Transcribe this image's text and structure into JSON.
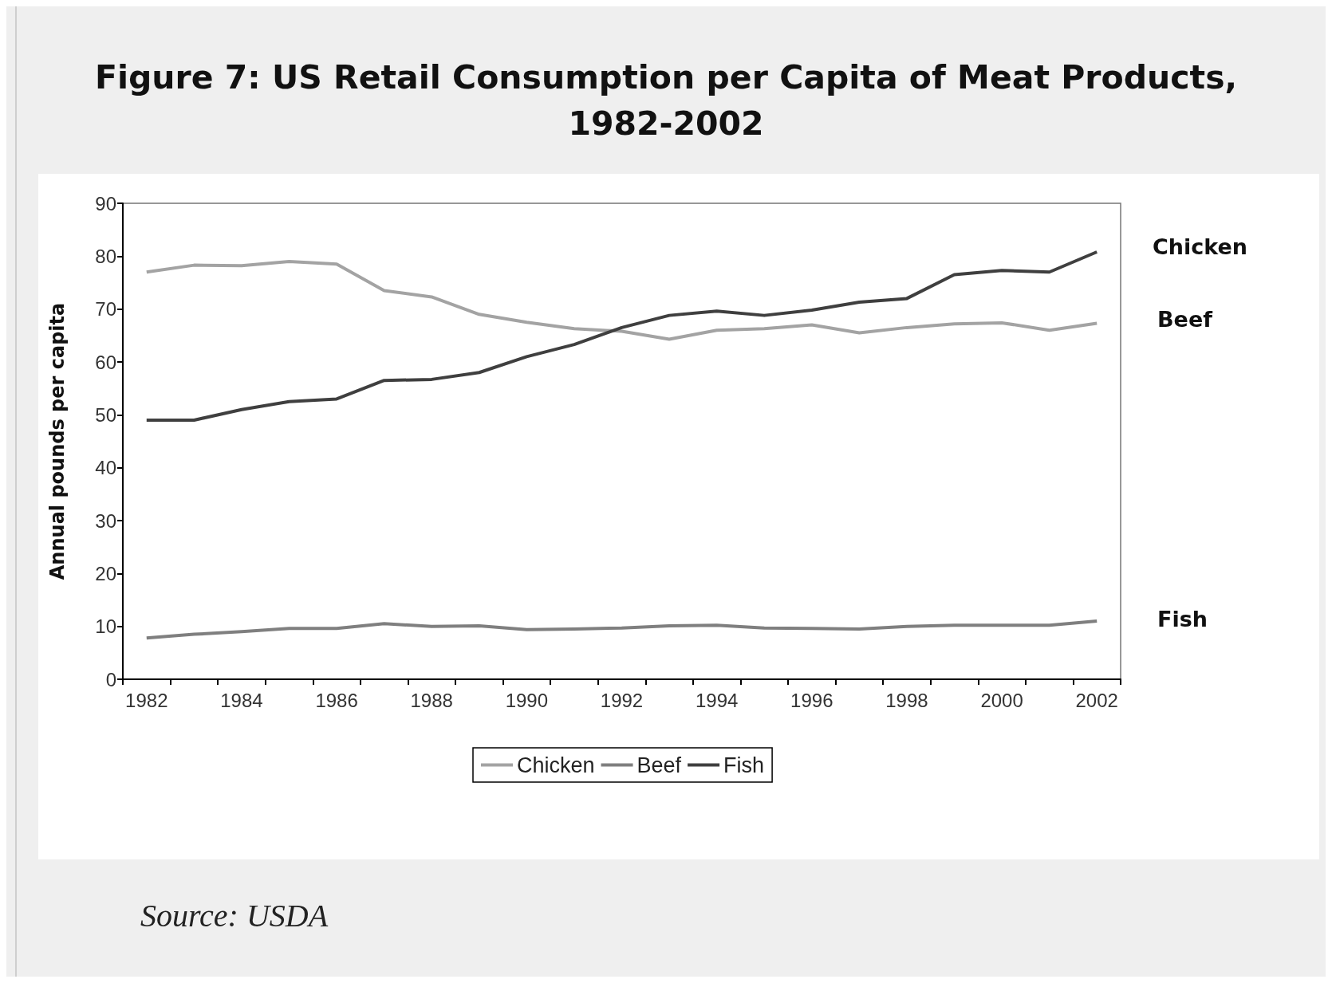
{
  "chart_data": {
    "type": "line",
    "title": "Figure 7: US Retail Consumption per Capita of Meat Products,\n1982-2002",
    "ylabel": "Annual pounds per capita",
    "categories": [
      "1982",
      null,
      "1984",
      null,
      "1986",
      null,
      "1988",
      null,
      "1990",
      null,
      "1992",
      null,
      "1994",
      null,
      "1996",
      null,
      "1998",
      null,
      "2000",
      null,
      "2002"
    ],
    "series": [
      {
        "name": "Chicken",
        "color": "#a3a3a3",
        "values": [
          77,
          78.3,
          78.2,
          79,
          78.5,
          73.5,
          72.3,
          69,
          67.5,
          66.3,
          65.8,
          64.3,
          66,
          66.3,
          67,
          65.5,
          66.5,
          67.2,
          67.4,
          66,
          67.3
        ]
      },
      {
        "name": "Beef",
        "color": "#7f7f7f",
        "values": [
          7.8,
          8.5,
          9,
          9.6,
          9.6,
          10.5,
          10,
          10.1,
          9.4,
          9.5,
          9.7,
          10.1,
          10.2,
          9.7,
          9.6,
          9.5,
          10,
          10.2,
          10.2,
          10.2,
          11
        ]
      },
      {
        "name": "Fish",
        "color": "#3f3f3f",
        "values": [
          49,
          49,
          51,
          52.5,
          53,
          56.5,
          56.7,
          58,
          61,
          63.3,
          66.5,
          68.8,
          69.6,
          68.8,
          69.8,
          71.3,
          72,
          76.5,
          77.3,
          77,
          80.8
        ]
      }
    ],
    "ylim": [
      0,
      90
    ],
    "yticks": [
      0,
      10,
      20,
      30,
      40,
      50,
      60,
      70,
      80,
      90
    ],
    "grid": false,
    "legend": "bottom",
    "line_style": "solid",
    "marker": "none",
    "annotations": [
      "Chicken",
      "Beef",
      "Fish",
      "Source: USDA"
    ]
  }
}
